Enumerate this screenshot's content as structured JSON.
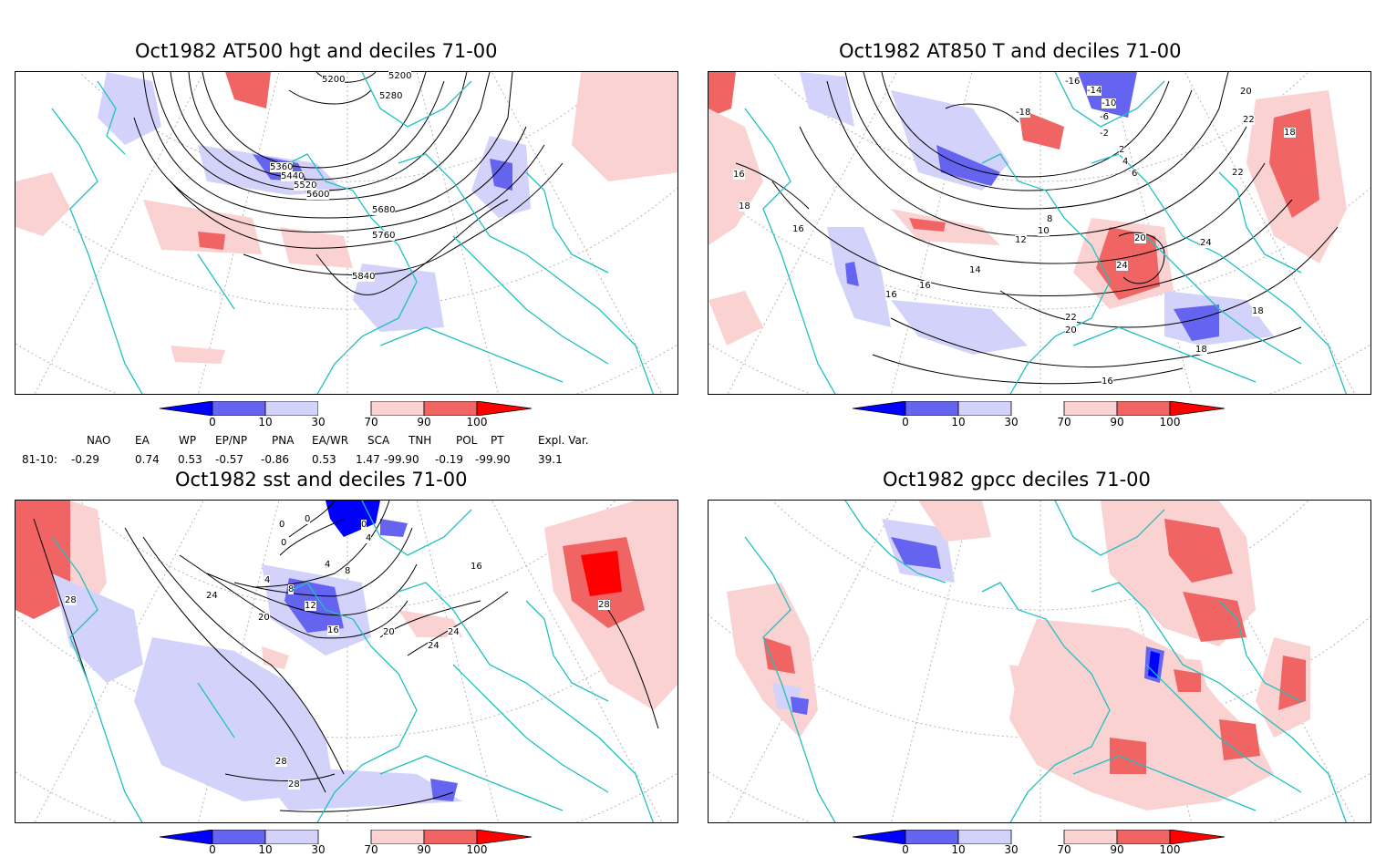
{
  "panels": [
    {
      "title": "Oct1982 AT500 hgt and deciles 71-00"
    },
    {
      "title": "Oct1982 AT850 T and deciles 71-00"
    },
    {
      "title": "Oct1982 sst and deciles 71-00"
    },
    {
      "title": "Oct1982 gpcc deciles 71-00"
    }
  ],
  "colorbar": {
    "labels": [
      "0",
      "10",
      "30",
      "70",
      "90",
      "100"
    ],
    "colors": [
      "#0000ff",
      "#6464f0",
      "#d2d2fa",
      "#ffffff",
      "#fad2d2",
      "#f06464",
      "#ff0000"
    ]
  },
  "indices": {
    "row_label": "81-10:",
    "items": [
      {
        "name": "NAO",
        "value": "-0.29"
      },
      {
        "name": "EA",
        "value": "0.74"
      },
      {
        "name": "WP",
        "value": "0.53"
      },
      {
        "name": "EP/NP",
        "value": "-0.57"
      },
      {
        "name": "PNA",
        "value": "-0.86"
      },
      {
        "name": "EA/WR",
        "value": "0.53"
      },
      {
        "name": "SCA",
        "value": "1.47"
      },
      {
        "name": "TNH",
        "value": "-99.90"
      },
      {
        "name": "POL",
        "value": "-0.19"
      },
      {
        "name": "PT",
        "value": "-99.90"
      }
    ],
    "expl_label": "Expl. Var.",
    "expl_value": "39.1"
  },
  "contour_labels": {
    "hgt": [
      "5200",
      "5200",
      "5280",
      "5360",
      "5440",
      "5520",
      "5600",
      "5680",
      "5760",
      "5840"
    ],
    "t850": [
      "-16",
      "-14",
      "-10",
      "-18",
      "-6",
      "-2",
      "2",
      "4",
      "6",
      "8",
      "10",
      "12",
      "14",
      "16",
      "16",
      "16",
      "16",
      "18",
      "18",
      "18",
      "18",
      "20",
      "20",
      "20",
      "22",
      "22",
      "22",
      "24",
      "24",
      "16"
    ],
    "sst": [
      "0",
      "0",
      "0",
      "0",
      "4",
      "4",
      "4",
      "8",
      "8",
      "12",
      "16",
      "20",
      "20",
      "24",
      "24",
      "24",
      "28",
      "28",
      "28",
      "28",
      "16"
    ]
  },
  "styles": {
    "coast_color": "#20c0c0",
    "contour_color": "#000000",
    "grid_color": "#b4b4b4"
  }
}
